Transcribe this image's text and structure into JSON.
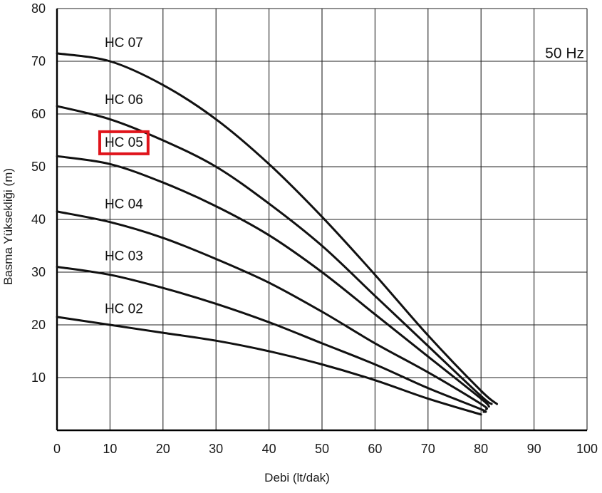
{
  "chart_data": {
    "type": "line",
    "title": "",
    "xlabel": "Debi (lt/dak)",
    "ylabel": "Basma Yüksekliği (m)",
    "xlim": [
      0,
      100
    ],
    "ylim": [
      0,
      80
    ],
    "xticks": [
      0,
      10,
      20,
      30,
      40,
      50,
      60,
      70,
      80,
      90,
      100
    ],
    "yticks": [
      10,
      20,
      30,
      40,
      50,
      60,
      70,
      80
    ],
    "grid": true,
    "annotation": "50 Hz",
    "highlighted_series": "HC 05",
    "highlight_color": "#e0141b",
    "line_color": "#111111",
    "series": [
      {
        "name": "HC 07",
        "x": [
          0,
          10,
          20,
          30,
          40,
          50,
          60,
          70,
          80,
          83
        ],
        "y": [
          71.5,
          70,
          65.5,
          59,
          50.5,
          40.5,
          29.5,
          18,
          7.5,
          5
        ]
      },
      {
        "name": "HC 06",
        "x": [
          0,
          10,
          20,
          30,
          40,
          50,
          60,
          70,
          80,
          82
        ],
        "y": [
          61.5,
          59,
          55,
          50,
          43,
          35,
          25.5,
          16,
          6.5,
          5
        ]
      },
      {
        "name": "HC 05",
        "x": [
          0,
          10,
          20,
          30,
          40,
          50,
          60,
          70,
          80,
          81.5
        ],
        "y": [
          52,
          50.5,
          47,
          42.5,
          37,
          30,
          22,
          14,
          6,
          4.5
        ]
      },
      {
        "name": "HC 04",
        "x": [
          0,
          10,
          20,
          30,
          40,
          50,
          60,
          70,
          80,
          81
        ],
        "y": [
          41.5,
          39.5,
          36.5,
          32.5,
          28,
          22.5,
          16.5,
          11,
          5,
          4
        ]
      },
      {
        "name": "HC 03",
        "x": [
          0,
          10,
          20,
          30,
          40,
          50,
          60,
          70,
          80,
          80.5
        ],
        "y": [
          31,
          29.5,
          27,
          24,
          20.5,
          16.5,
          12.5,
          8,
          4,
          3.5
        ]
      },
      {
        "name": "HC 02",
        "x": [
          0,
          10,
          20,
          30,
          40,
          50,
          60,
          70,
          80
        ],
        "y": [
          21.5,
          20,
          18.5,
          17,
          15,
          12.5,
          9.5,
          6,
          3
        ]
      }
    ],
    "series_label_positions": [
      {
        "name": "HC 07",
        "x": 9,
        "y": 72.7
      },
      {
        "name": "HC 06",
        "x": 9,
        "y": 61.9
      },
      {
        "name": "HC 05",
        "x": 9,
        "y": 53.8
      },
      {
        "name": "HC 04",
        "x": 9,
        "y": 42.1
      },
      {
        "name": "HC 03",
        "x": 9,
        "y": 32.2
      },
      {
        "name": "HC 02",
        "x": 9,
        "y": 22.2
      }
    ]
  }
}
